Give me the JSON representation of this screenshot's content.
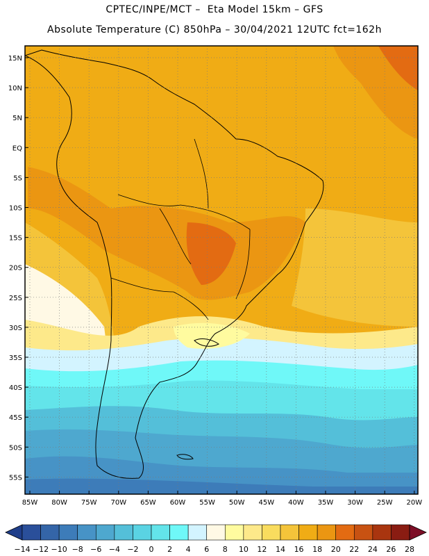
{
  "header": {
    "title_line1": "CPTEC/INPE/MCT –  Eta Model 15km – GFS",
    "title_line2": "Absolute Temperature (C) 850hPa – 30/04/2021 12UTC fct=162h"
  },
  "map": {
    "lat_labels": [
      "15N",
      "10N",
      "5N",
      "EQ",
      "5S",
      "10S",
      "15S",
      "20S",
      "25S",
      "30S",
      "35S",
      "40S",
      "45S",
      "50S",
      "55S"
    ],
    "lon_labels": [
      "85W",
      "80W",
      "75W",
      "70W",
      "65W",
      "60W",
      "55W",
      "50W",
      "45W",
      "40W",
      "35W",
      "30W",
      "25W",
      "20W"
    ]
  },
  "colorbar": {
    "labels": [
      "-14",
      "-12",
      "-10",
      "-8",
      "-6",
      "-4",
      "-2",
      "0",
      "2",
      "4",
      "6",
      "8",
      "10",
      "12",
      "14",
      "16",
      "18",
      "20",
      "22",
      "24",
      "26",
      "28"
    ],
    "colors": [
      "#2a4f9a",
      "#3465a8",
      "#3d7cb9",
      "#4793c6",
      "#4ea8cf",
      "#54bfd9",
      "#5ad3e3",
      "#63e4ea",
      "#6ff8f8",
      "#d3f4ff",
      "#fff9e5",
      "#fffb9f",
      "#fde98a",
      "#f9dc5e",
      "#f4c43a",
      "#f0ac15",
      "#eb9612",
      "#e36b12",
      "#c85212",
      "#a9350f",
      "#8a1c12"
    ],
    "under_color": "#1f3e8a",
    "over_color": "#7d0e26"
  }
}
